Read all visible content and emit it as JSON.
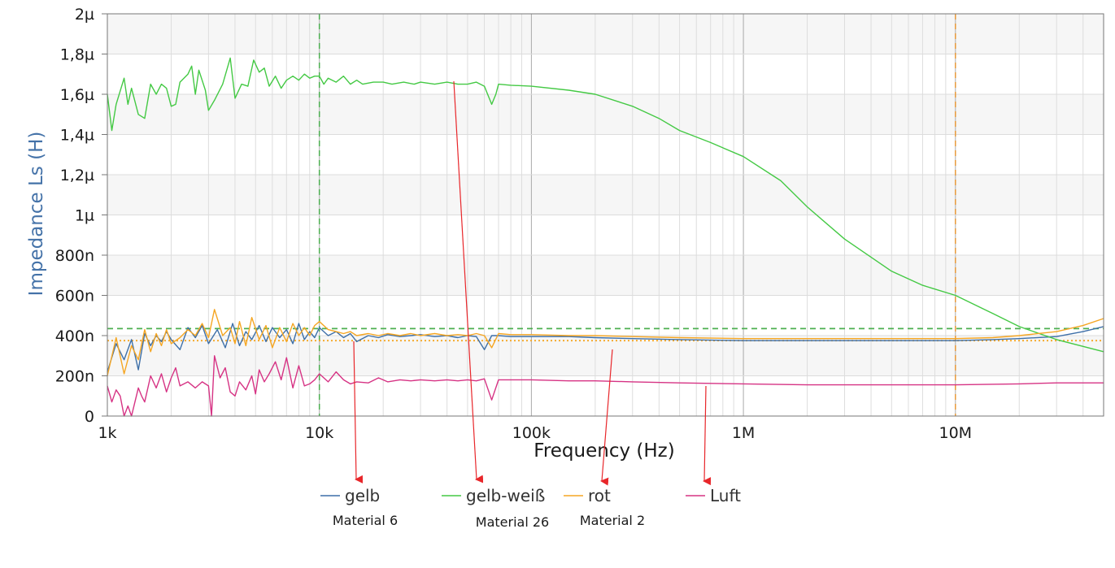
{
  "chart_data": {
    "type": "line",
    "xlabel": "Frequency (Hz)",
    "ylabel": "Impedance Ls (H)",
    "x_scale": "log",
    "xlim": [
      1000,
      50000000
    ],
    "ylim": [
      0,
      2e-06
    ],
    "x_ticks": [
      {
        "value": 1000,
        "label": "1k"
      },
      {
        "value": 10000,
        "label": "10k"
      },
      {
        "value": 100000,
        "label": "100k"
      },
      {
        "value": 1000000,
        "label": "1M"
      },
      {
        "value": 10000000,
        "label": "10M"
      }
    ],
    "y_ticks": [
      {
        "value": 0,
        "label": "0"
      },
      {
        "value": 2e-07,
        "label": "200n"
      },
      {
        "value": 4e-07,
        "label": "400n"
      },
      {
        "value": 6e-07,
        "label": "600n"
      },
      {
        "value": 8e-07,
        "label": "800n"
      },
      {
        "value": 1e-06,
        "label": "1µ"
      },
      {
        "value": 1.2e-06,
        "label": "1,2µ"
      },
      {
        "value": 1.4e-06,
        "label": "1,4µ"
      },
      {
        "value": 1.6e-06,
        "label": "1,6µ"
      },
      {
        "value": 1.8e-06,
        "label": "1,8µ"
      },
      {
        "value": 2e-06,
        "label": "2µ"
      }
    ],
    "grid": true,
    "legend_position": "bottom",
    "reference_lines": [
      {
        "orientation": "vertical",
        "value": 10000,
        "color": "#4caf50",
        "style": "dashed"
      },
      {
        "orientation": "vertical",
        "value": 10000000,
        "color": "#e89a3c",
        "style": "dashed"
      },
      {
        "orientation": "horizontal",
        "value": 4.35e-07,
        "color": "#4caf50",
        "style": "dashed"
      },
      {
        "orientation": "horizontal",
        "value": 3.75e-07,
        "color": "#f5a623",
        "style": "dotted"
      }
    ],
    "series": [
      {
        "name": "gelb",
        "annotation": "Material 6",
        "color": "#3d6fa8",
        "x": [
          1000,
          1100,
          1200,
          1300,
          1400,
          1500,
          1600,
          1700,
          1800,
          1900,
          2000,
          2200,
          2400,
          2600,
          2800,
          3000,
          3300,
          3600,
          3900,
          4200,
          4500,
          4800,
          5200,
          5600,
          6000,
          6500,
          7000,
          7500,
          8000,
          8500,
          9000,
          9500,
          10000,
          11000,
          12000,
          13000,
          14000,
          15000,
          17000,
          19000,
          21000,
          24000,
          27000,
          30000,
          35000,
          40000,
          45000,
          50000,
          55000,
          60000,
          65000,
          70000,
          80000,
          100000,
          150000,
          200000,
          300000,
          500000,
          1000000,
          2000000,
          5000000,
          10000000,
          15000000,
          20000000,
          30000000,
          40000000,
          50000000
        ],
        "values": [
          2.2e-07,
          3.6e-07,
          2.8e-07,
          3.8e-07,
          2.3e-07,
          4.1e-07,
          3.5e-07,
          4e-07,
          3.7e-07,
          4.2e-07,
          3.8e-07,
          3.3e-07,
          4.4e-07,
          3.9e-07,
          4.5e-07,
          3.6e-07,
          4.3e-07,
          3.4e-07,
          4.6e-07,
          3.5e-07,
          4.2e-07,
          3.8e-07,
          4.5e-07,
          3.7e-07,
          4.4e-07,
          3.9e-07,
          4.3e-07,
          3.6e-07,
          4.6e-07,
          3.8e-07,
          4.2e-07,
          3.9e-07,
          4.4e-07,
          4e-07,
          4.2e-07,
          3.9e-07,
          4.1e-07,
          3.7e-07,
          4e-07,
          3.9e-07,
          4.05e-07,
          3.95e-07,
          4e-07,
          4.05e-07,
          3.95e-07,
          4e-07,
          3.9e-07,
          4e-07,
          3.95e-07,
          3.3e-07,
          4e-07,
          4e-07,
          3.95e-07,
          3.95e-07,
          3.95e-07,
          3.9e-07,
          3.85e-07,
          3.8e-07,
          3.75e-07,
          3.75e-07,
          3.75e-07,
          3.75e-07,
          3.8e-07,
          3.85e-07,
          3.95e-07,
          4.2e-07,
          4.45e-07
        ]
      },
      {
        "name": "gelb-weiß",
        "annotation": "Material 26",
        "color": "#44c944",
        "x": [
          1000,
          1050,
          1100,
          1200,
          1250,
          1300,
          1400,
          1500,
          1600,
          1700,
          1800,
          1900,
          2000,
          2100,
          2200,
          2400,
          2500,
          2600,
          2700,
          2900,
          3000,
          3200,
          3500,
          3800,
          4000,
          4300,
          4600,
          4900,
          5200,
          5500,
          5800,
          6200,
          6600,
          7000,
          7500,
          8000,
          8500,
          9000,
          9500,
          10000,
          10500,
          11000,
          12000,
          13000,
          14000,
          15000,
          16000,
          18000,
          20000,
          22000,
          25000,
          28000,
          30000,
          35000,
          40000,
          45000,
          50000,
          55000,
          60000,
          65000,
          68000,
          70000,
          80000,
          100000,
          150000,
          200000,
          300000,
          400000,
          500000,
          700000,
          1000000,
          1500000,
          2000000,
          3000000,
          5000000,
          7000000,
          10000000,
          15000000,
          20000000,
          30000000,
          50000000
        ],
        "values": [
          1.6e-06,
          1.42e-06,
          1.55e-06,
          1.68e-06,
          1.55e-06,
          1.63e-06,
          1.5e-06,
          1.48e-06,
          1.65e-06,
          1.6e-06,
          1.65e-06,
          1.63e-06,
          1.54e-06,
          1.55e-06,
          1.66e-06,
          1.7e-06,
          1.74e-06,
          1.6e-06,
          1.72e-06,
          1.62e-06,
          1.52e-06,
          1.57e-06,
          1.65e-06,
          1.78e-06,
          1.58e-06,
          1.65e-06,
          1.64e-06,
          1.77e-06,
          1.71e-06,
          1.73e-06,
          1.64e-06,
          1.69e-06,
          1.63e-06,
          1.67e-06,
          1.69e-06,
          1.67e-06,
          1.7e-06,
          1.68e-06,
          1.69e-06,
          1.69e-06,
          1.65e-06,
          1.68e-06,
          1.66e-06,
          1.69e-06,
          1.65e-06,
          1.67e-06,
          1.65e-06,
          1.66e-06,
          1.66e-06,
          1.65e-06,
          1.66e-06,
          1.65e-06,
          1.66e-06,
          1.65e-06,
          1.66e-06,
          1.65e-06,
          1.65e-06,
          1.66e-06,
          1.64e-06,
          1.55e-06,
          1.6e-06,
          1.65e-06,
          1.645e-06,
          1.64e-06,
          1.62e-06,
          1.6e-06,
          1.54e-06,
          1.48e-06,
          1.42e-06,
          1.36e-06,
          1.29e-06,
          1.17e-06,
          1.04e-06,
          8.8e-07,
          7.2e-07,
          6.5e-07,
          6e-07,
          5.1e-07,
          4.45e-07,
          3.8e-07,
          3.2e-07
        ]
      },
      {
        "name": "rot",
        "annotation": "Material 2",
        "color": "#f5a623",
        "x": [
          1000,
          1100,
          1200,
          1300,
          1400,
          1500,
          1600,
          1700,
          1800,
          1900,
          2000,
          2200,
          2400,
          2600,
          2800,
          3000,
          3200,
          3500,
          3800,
          4000,
          4200,
          4500,
          4800,
          5200,
          5600,
          6000,
          6500,
          7000,
          7500,
          8000,
          8500,
          9000,
          9500,
          10000,
          11000,
          12000,
          13000,
          14000,
          15000,
          17000,
          19000,
          21000,
          24000,
          27000,
          30000,
          35000,
          40000,
          45000,
          50000,
          55000,
          60000,
          65000,
          70000,
          80000,
          100000,
          150000,
          200000,
          300000,
          500000,
          1000000,
          2000000,
          5000000,
          10000000,
          15000000,
          20000000,
          30000000,
          40000000,
          50000000
        ],
        "values": [
          2e-07,
          3.9e-07,
          2.1e-07,
          3.5e-07,
          2.8e-07,
          4.3e-07,
          3.2e-07,
          4.1e-07,
          3.5e-07,
          4.3e-07,
          3.6e-07,
          3.9e-07,
          4.3e-07,
          4e-07,
          4.6e-07,
          3.9e-07,
          5.3e-07,
          4e-07,
          4.4e-07,
          3.6e-07,
          4.7e-07,
          3.5e-07,
          4.9e-07,
          3.8e-07,
          4.5e-07,
          3.4e-07,
          4.4e-07,
          3.7e-07,
          4.6e-07,
          4e-07,
          4.4e-07,
          4e-07,
          4.5e-07,
          4.7e-07,
          4.3e-07,
          4.2e-07,
          4.1e-07,
          4.2e-07,
          4e-07,
          4.1e-07,
          4e-07,
          4.1e-07,
          4e-07,
          4.1e-07,
          4e-07,
          4.1e-07,
          4e-07,
          4.05e-07,
          4e-07,
          4.1e-07,
          4e-07,
          3.4e-07,
          4.1e-07,
          4.05e-07,
          4.05e-07,
          4e-07,
          4e-07,
          3.95e-07,
          3.9e-07,
          3.85e-07,
          3.85e-07,
          3.85e-07,
          3.85e-07,
          3.9e-07,
          4e-07,
          4.2e-07,
          4.5e-07,
          4.85e-07
        ]
      },
      {
        "name": "Luft",
        "annotation": "",
        "color": "#d63384",
        "x": [
          1000,
          1050,
          1100,
          1150,
          1200,
          1250,
          1300,
          1400,
          1450,
          1500,
          1600,
          1700,
          1800,
          1900,
          2000,
          2100,
          2200,
          2400,
          2600,
          2800,
          3000,
          3100,
          3200,
          3400,
          3600,
          3800,
          4000,
          4200,
          4500,
          4800,
          5000,
          5200,
          5500,
          5800,
          6200,
          6600,
          7000,
          7500,
          8000,
          8500,
          9000,
          9500,
          10000,
          11000,
          12000,
          13000,
          14000,
          15000,
          17000,
          19000,
          21000,
          24000,
          27000,
          30000,
          35000,
          40000,
          45000,
          50000,
          55000,
          60000,
          65000,
          70000,
          80000,
          100000,
          150000,
          200000,
          300000,
          500000,
          1000000,
          2000000,
          5000000,
          10000000,
          20000000,
          30000000,
          50000000
        ],
        "values": [
          1.5e-07,
          7e-08,
          1.3e-07,
          1e-07,
          0,
          5e-08,
          0,
          1.4e-07,
          1e-07,
          7e-08,
          2e-07,
          1.4e-07,
          2.1e-07,
          1.2e-07,
          1.9e-07,
          2.4e-07,
          1.5e-07,
          1.7e-07,
          1.4e-07,
          1.7e-07,
          1.5e-07,
          0,
          3e-07,
          1.9e-07,
          2.4e-07,
          1.2e-07,
          1e-07,
          1.7e-07,
          1.3e-07,
          2e-07,
          1.1e-07,
          2.3e-07,
          1.7e-07,
          2.1e-07,
          2.7e-07,
          1.8e-07,
          2.9e-07,
          1.4e-07,
          2.5e-07,
          1.5e-07,
          1.6e-07,
          1.8e-07,
          2.1e-07,
          1.7e-07,
          2.2e-07,
          1.8e-07,
          1.6e-07,
          1.7e-07,
          1.65e-07,
          1.9e-07,
          1.7e-07,
          1.8e-07,
          1.75e-07,
          1.8e-07,
          1.75e-07,
          1.8e-07,
          1.75e-07,
          1.8e-07,
          1.75e-07,
          1.85e-07,
          8e-08,
          1.8e-07,
          1.8e-07,
          1.8e-07,
          1.75e-07,
          1.75e-07,
          1.7e-07,
          1.65e-07,
          1.6e-07,
          1.55e-07,
          1.55e-07,
          1.55e-07,
          1.6e-07,
          1.65e-07,
          1.65e-07
        ]
      }
    ]
  }
}
